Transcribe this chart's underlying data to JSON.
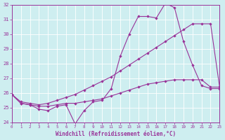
{
  "line1_x": [
    0,
    1,
    2,
    3,
    4,
    5,
    6,
    7,
    8,
    9,
    10,
    11,
    12,
    13,
    14,
    15,
    16,
    17,
    18,
    19,
    20,
    21,
    22,
    23
  ],
  "line1_y": [
    25.9,
    25.3,
    25.2,
    24.9,
    24.8,
    25.1,
    25.2,
    23.9,
    24.8,
    25.4,
    25.5,
    26.3,
    28.5,
    30.0,
    31.2,
    31.2,
    31.1,
    32.1,
    31.8,
    29.5,
    27.9,
    26.5,
    26.3,
    26.3
  ],
  "line2_x": [
    0,
    1,
    2,
    3,
    4,
    5,
    6,
    7,
    8,
    9,
    10,
    11,
    12,
    13,
    14,
    15,
    16,
    17,
    18,
    19,
    20,
    21,
    22,
    23
  ],
  "line2_y": [
    25.9,
    25.4,
    25.3,
    25.2,
    25.3,
    25.5,
    25.7,
    25.9,
    26.2,
    26.5,
    26.8,
    27.1,
    27.5,
    27.9,
    28.3,
    28.7,
    29.1,
    29.5,
    29.9,
    30.3,
    30.7,
    30.7,
    30.7,
    26.4
  ],
  "line3_x": [
    0,
    1,
    2,
    3,
    4,
    5,
    6,
    7,
    8,
    9,
    10,
    11,
    12,
    13,
    14,
    15,
    16,
    17,
    18,
    19,
    20,
    21,
    22,
    23
  ],
  "line3_y": [
    25.9,
    25.3,
    25.2,
    25.1,
    25.1,
    25.2,
    25.3,
    25.3,
    25.4,
    25.5,
    25.6,
    25.8,
    26.0,
    26.2,
    26.4,
    26.6,
    26.7,
    26.8,
    26.9,
    26.9,
    26.9,
    26.9,
    26.4,
    26.4
  ],
  "line_color": "#993399",
  "bg_color": "#ceeef0",
  "grid_color": "#ffffff",
  "xlabel": "Windchill (Refroidissement éolien,°C)",
  "ylim": [
    24,
    32
  ],
  "xlim": [
    0,
    23
  ],
  "yticks": [
    24,
    25,
    26,
    27,
    28,
    29,
    30,
    31,
    32
  ],
  "xticks": [
    0,
    1,
    2,
    3,
    4,
    5,
    6,
    7,
    8,
    9,
    10,
    11,
    12,
    13,
    14,
    15,
    16,
    17,
    18,
    19,
    20,
    21,
    22,
    23
  ]
}
